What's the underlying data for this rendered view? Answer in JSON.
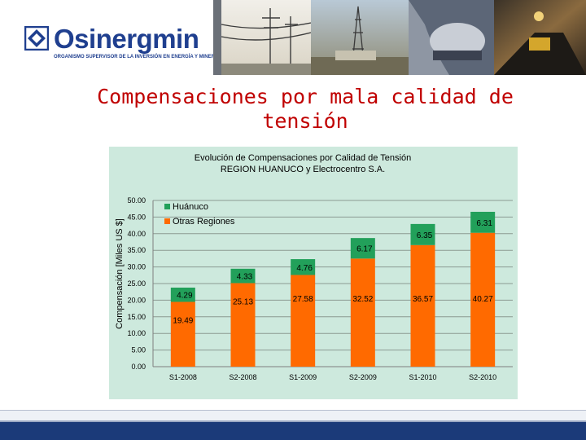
{
  "brand": {
    "name": "Osinergmin",
    "tagline": "ORGANISMO SUPERVISOR DE LA INVERSIÓN EN ENERGÍA Y MINERÍA"
  },
  "slide": {
    "title": "Compensaciones por mala calidad de tensión"
  },
  "colors": {
    "brand_blue": "#1f3f8f",
    "title_red": "#c00000",
    "panel_green": "#cde9dd",
    "huanuco_green": "#22a05a",
    "otras_orange": "#ff6a00",
    "footer_navy": "#1b3a79"
  },
  "chart_data": {
    "type": "bar",
    "stacked": true,
    "title": "Evolución de Compensaciones por Calidad de Tensión",
    "subtitle": "REGION HUANUCO y Electrocentro S.A.",
    "xlabel": "",
    "ylabel": "Compensación [Miles US $]",
    "ylim": [
      0,
      50
    ],
    "yticks": [
      "0.00",
      "5.00",
      "10.00",
      "15.00",
      "20.00",
      "25.00",
      "30.00",
      "35.00",
      "40.00",
      "45.00",
      "50.00"
    ],
    "grid": true,
    "legend_position": "top-left",
    "categories": [
      "S1-2008",
      "S2-2008",
      "S1-2009",
      "S2-2009",
      "S1-2010",
      "S2-2010"
    ],
    "series": [
      {
        "name": "Otras Regiones",
        "color": "#ff6a00",
        "values": [
          19.49,
          25.13,
          27.58,
          32.52,
          36.57,
          40.27
        ],
        "labels": [
          "19.49",
          "25.13",
          "27.58",
          "32.52",
          "36.57",
          "40.27"
        ]
      },
      {
        "name": "Huánuco",
        "color": "#22a05a",
        "values": [
          4.29,
          4.33,
          4.76,
          6.17,
          6.35,
          6.31
        ],
        "labels": [
          "4.29",
          "4.33",
          "4.76",
          "6.17",
          "6.35",
          "6.31"
        ]
      }
    ]
  }
}
